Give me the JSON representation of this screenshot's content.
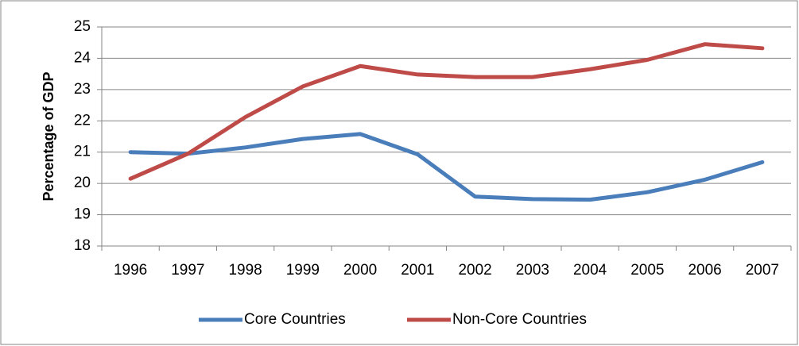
{
  "chart_data": {
    "type": "line",
    "y_label": "Percentage of GDP",
    "categories": [
      "1996",
      "1997",
      "1998",
      "1999",
      "2000",
      "2001",
      "2002",
      "2003",
      "2004",
      "2005",
      "2006",
      "2007"
    ],
    "series": [
      {
        "name": "Core Countries",
        "color": "#4a7ebb",
        "values": [
          21.0,
          20.95,
          21.15,
          21.42,
          21.58,
          20.93,
          19.58,
          19.5,
          19.48,
          19.72,
          20.12,
          20.68
        ]
      },
      {
        "name": "Non-Core Countries",
        "color": "#be4b48",
        "values": [
          20.15,
          20.95,
          22.12,
          23.1,
          23.75,
          23.48,
          23.4,
          23.4,
          23.65,
          23.95,
          24.45,
          24.32
        ]
      }
    ],
    "ylim": [
      18,
      25
    ],
    "yticks": [
      18,
      19,
      20,
      21,
      22,
      23,
      24,
      25
    ],
    "grid": true,
    "legend": "bottom"
  }
}
